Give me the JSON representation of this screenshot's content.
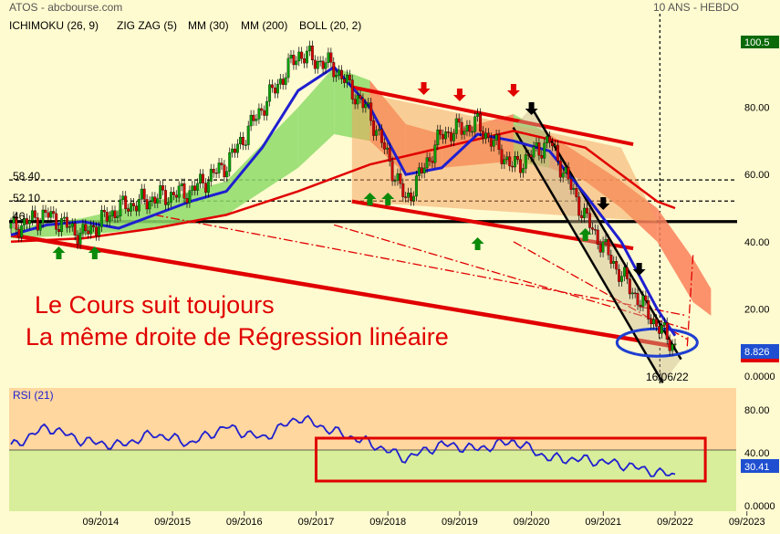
{
  "header": {
    "source": "ATOS - abcbourse.com",
    "period": "10 ANS - HEBDO",
    "indicators": [
      {
        "label": "ICHIMOKU (26, 9)",
        "color": "#e00000"
      },
      {
        "label": "ZIG ZAG (5)",
        "color": "#000000"
      },
      {
        "label": "MM (30)",
        "color": "#1f1fd0"
      },
      {
        "label": "MM (200)",
        "color": "#e00000"
      },
      {
        "label": "BOLL (20, 2)",
        "color": "#1f1fd0"
      }
    ]
  },
  "annotation": {
    "line1": "Le Cours suit toujours",
    "line2": "La même droite de Régression linéaire",
    "date_label": "16/06/22",
    "color": "#e00000"
  },
  "levels": [
    {
      "label": "58.40",
      "value": 58.4
    },
    {
      "label": "52.10",
      "value": 52.1
    },
    {
      "label": "46",
      "value": 46
    }
  ],
  "right_badges": {
    "top": "100.5",
    "last": "8.826",
    "rsi_last": "30.41"
  },
  "rsi": {
    "title": "RSI (21)",
    "ticks": [
      "80.00",
      "40.00",
      "0.0000"
    ]
  },
  "chart_data": [
    {
      "type": "line",
      "title": "ATOS",
      "ylim": [
        0,
        100.5
      ],
      "yticks": [
        "80.00",
        "60.00",
        "40.00",
        "20.00",
        "0.0000"
      ],
      "xticks": [
        "09/2014",
        "09/2015",
        "09/2016",
        "09/2017",
        "09/2018",
        "09/2019",
        "09/2020",
        "09/2021",
        "09/2022",
        "09/2023"
      ],
      "x": [
        "2013-06",
        "2013-12",
        "2014-06",
        "2014-12",
        "2015-06",
        "2015-12",
        "2016-06",
        "2016-12",
        "2017-06",
        "2017-12",
        "2018-06",
        "2018-12",
        "2019-06",
        "2019-12",
        "2020-06",
        "2020-12",
        "2021-06",
        "2021-12",
        "2022-06",
        "2022-09"
      ],
      "series": [
        {
          "values": [
            44,
            48,
            42,
            50,
            53,
            55,
            63,
            80,
            96,
            92,
            78,
            52,
            72,
            75,
            62,
            70,
            47,
            30,
            15,
            8.8
          ],
          "color": "#000000"
        }
      ],
      "colors": {
        "price_up": "#08a008",
        "price_down": "#d00000",
        "mm30": "#1f1fd0",
        "mm200": "#e00000",
        "cloud_bull": "#8edb6a",
        "cloud_bear": "#fa7f5a",
        "channel": "#f4a05c",
        "regression": "#e00000"
      }
    },
    {
      "type": "line",
      "title": "RSI (21)",
      "ylim": [
        0,
        100
      ],
      "x": [
        "2013-06",
        "2013-12",
        "2014-06",
        "2014-12",
        "2015-06",
        "2015-12",
        "2016-06",
        "2016-12",
        "2017-06",
        "2017-12",
        "2018-06",
        "2018-12",
        "2019-06",
        "2019-12",
        "2020-06",
        "2020-12",
        "2021-06",
        "2021-12",
        "2022-06",
        "2022-09"
      ],
      "series": [
        {
          "name": "RSI (21)",
          "values": [
            55,
            72,
            60,
            56,
            66,
            58,
            72,
            62,
            80,
            68,
            58,
            45,
            57,
            53,
            60,
            45,
            44,
            40,
            33,
            30.4
          ],
          "color": "#1f1fd0"
        }
      ]
    }
  ]
}
